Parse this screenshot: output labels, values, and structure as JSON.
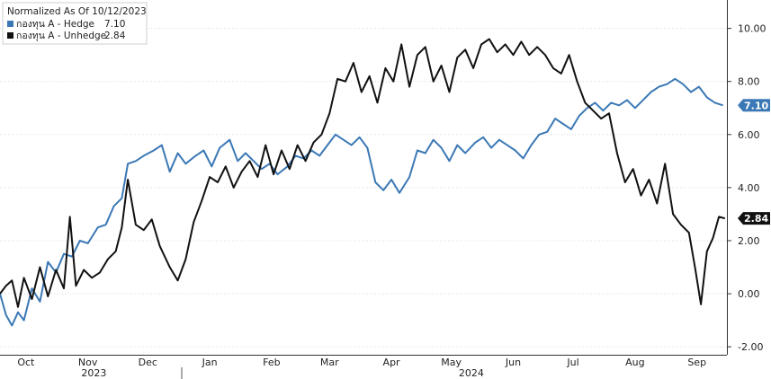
{
  "chart_data": {
    "type": "line",
    "title": "",
    "xlabel": "",
    "ylabel": "",
    "ylim": [
      -2.3,
      10.8
    ],
    "y_ticks": [
      "10.00",
      "8.00",
      "6.00",
      "4.00",
      "2.00",
      "0.00",
      "-2.00"
    ],
    "y_tick_values": [
      10,
      8,
      6,
      4,
      2,
      0,
      -2
    ],
    "x_start": "2023-10-02",
    "x_end": "2024-09-30",
    "x_ticks": [
      {
        "label": "Oct",
        "date": "2023-10-15"
      },
      {
        "label": "Nov",
        "date": "2023-11-15"
      },
      {
        "label": "Dec",
        "date": "2023-12-15"
      },
      {
        "label": "Jan",
        "date": "2024-01-15"
      },
      {
        "label": "Feb",
        "date": "2024-02-15"
      },
      {
        "label": "Mar",
        "date": "2024-03-15"
      },
      {
        "label": "Apr",
        "date": "2024-04-15"
      },
      {
        "label": "May",
        "date": "2024-05-15"
      },
      {
        "label": "Jun",
        "date": "2024-06-15"
      },
      {
        "label": "Jul",
        "date": "2024-07-15"
      },
      {
        "label": "Aug",
        "date": "2024-08-15"
      },
      {
        "label": "Sep",
        "date": "2024-09-15"
      }
    ],
    "year_labels": [
      {
        "label": "2023",
        "date": "2023-11-18"
      },
      {
        "label": "2024",
        "date": "2024-05-25"
      }
    ],
    "year_separator_date": "2024-01-01",
    "legend": {
      "header": "Normalized As Of 10/12/2023",
      "placement": "top-left"
    },
    "grid": {
      "horizontal": true,
      "vertical": false
    },
    "series": [
      {
        "name": "กองทุน A - Hedge",
        "legend_value": "7.10",
        "last_label": "7.10",
        "color": "#3b78b5",
        "points": [
          [
            "2023-10-02",
            0.0
          ],
          [
            "2023-10-05",
            -0.8
          ],
          [
            "2023-10-08",
            -1.2
          ],
          [
            "2023-10-11",
            -0.7
          ],
          [
            "2023-10-14",
            -1.0
          ],
          [
            "2023-10-18",
            0.2
          ],
          [
            "2023-10-22",
            -0.3
          ],
          [
            "2023-10-26",
            1.2
          ],
          [
            "2023-10-30",
            0.8
          ],
          [
            "2023-11-03",
            1.5
          ],
          [
            "2023-11-07",
            1.4
          ],
          [
            "2023-11-11",
            2.0
          ],
          [
            "2023-11-15",
            1.9
          ],
          [
            "2023-11-20",
            2.5
          ],
          [
            "2023-11-24",
            2.6
          ],
          [
            "2023-11-28",
            3.3
          ],
          [
            "2023-12-02",
            3.6
          ],
          [
            "2023-12-05",
            4.9
          ],
          [
            "2023-12-09",
            5.0
          ],
          [
            "2023-12-13",
            5.2
          ],
          [
            "2023-12-18",
            5.4
          ],
          [
            "2023-12-22",
            5.6
          ],
          [
            "2023-12-26",
            4.6
          ],
          [
            "2023-12-30",
            5.3
          ],
          [
            "2024-01-03",
            4.9
          ],
          [
            "2024-01-08",
            5.2
          ],
          [
            "2024-01-12",
            5.4
          ],
          [
            "2024-01-16",
            4.8
          ],
          [
            "2024-01-20",
            5.5
          ],
          [
            "2024-01-25",
            5.8
          ],
          [
            "2024-01-29",
            5.0
          ],
          [
            "2024-02-02",
            5.3
          ],
          [
            "2024-02-06",
            5.0
          ],
          [
            "2024-02-10",
            4.7
          ],
          [
            "2024-02-14",
            4.9
          ],
          [
            "2024-02-18",
            4.5
          ],
          [
            "2024-02-23",
            4.8
          ],
          [
            "2024-02-27",
            5.2
          ],
          [
            "2024-03-02",
            5.1
          ],
          [
            "2024-03-06",
            5.4
          ],
          [
            "2024-03-10",
            5.2
          ],
          [
            "2024-03-14",
            5.6
          ],
          [
            "2024-03-18",
            6.0
          ],
          [
            "2024-03-22",
            5.8
          ],
          [
            "2024-03-26",
            5.6
          ],
          [
            "2024-03-30",
            5.9
          ],
          [
            "2024-04-03",
            5.5
          ],
          [
            "2024-04-07",
            4.2
          ],
          [
            "2024-04-11",
            3.9
          ],
          [
            "2024-04-15",
            4.3
          ],
          [
            "2024-04-19",
            3.8
          ],
          [
            "2024-04-24",
            4.4
          ],
          [
            "2024-04-28",
            5.4
          ],
          [
            "2024-05-02",
            5.3
          ],
          [
            "2024-05-06",
            5.8
          ],
          [
            "2024-05-10",
            5.5
          ],
          [
            "2024-05-14",
            5.0
          ],
          [
            "2024-05-18",
            5.6
          ],
          [
            "2024-05-22",
            5.3
          ],
          [
            "2024-05-27",
            5.7
          ],
          [
            "2024-05-31",
            5.9
          ],
          [
            "2024-06-04",
            5.5
          ],
          [
            "2024-06-08",
            5.8
          ],
          [
            "2024-06-12",
            5.6
          ],
          [
            "2024-06-16",
            5.4
          ],
          [
            "2024-06-20",
            5.1
          ],
          [
            "2024-06-24",
            5.6
          ],
          [
            "2024-06-28",
            6.0
          ],
          [
            "2024-07-02",
            6.1
          ],
          [
            "2024-07-06",
            6.6
          ],
          [
            "2024-07-10",
            6.4
          ],
          [
            "2024-07-14",
            6.2
          ],
          [
            "2024-07-18",
            6.7
          ],
          [
            "2024-07-22",
            7.0
          ],
          [
            "2024-07-26",
            7.2
          ],
          [
            "2024-07-30",
            6.9
          ],
          [
            "2024-08-03",
            7.2
          ],
          [
            "2024-08-07",
            7.1
          ],
          [
            "2024-08-11",
            7.3
          ],
          [
            "2024-08-15",
            7.0
          ],
          [
            "2024-08-19",
            7.3
          ],
          [
            "2024-08-23",
            7.6
          ],
          [
            "2024-08-27",
            7.8
          ],
          [
            "2024-08-31",
            7.9
          ],
          [
            "2024-09-04",
            8.1
          ],
          [
            "2024-09-08",
            7.9
          ],
          [
            "2024-09-12",
            7.6
          ],
          [
            "2024-09-16",
            7.8
          ],
          [
            "2024-09-20",
            7.4
          ],
          [
            "2024-09-24",
            7.2
          ],
          [
            "2024-09-28",
            7.1
          ]
        ]
      },
      {
        "name": "กองทุน A - Unhedge",
        "legend_value": "2.84",
        "last_label": "2.84",
        "color": "#111111",
        "points": [
          [
            "2023-10-02",
            0.0
          ],
          [
            "2023-10-05",
            0.3
          ],
          [
            "2023-10-08",
            0.5
          ],
          [
            "2023-10-11",
            -0.5
          ],
          [
            "2023-10-14",
            0.6
          ],
          [
            "2023-10-18",
            -0.2
          ],
          [
            "2023-10-22",
            1.0
          ],
          [
            "2023-10-26",
            -0.1
          ],
          [
            "2023-10-30",
            0.9
          ],
          [
            "2023-11-03",
            0.2
          ],
          [
            "2023-11-06",
            2.9
          ],
          [
            "2023-11-09",
            0.3
          ],
          [
            "2023-11-13",
            0.9
          ],
          [
            "2023-11-17",
            0.6
          ],
          [
            "2023-11-21",
            0.8
          ],
          [
            "2023-11-25",
            1.3
          ],
          [
            "2023-11-29",
            1.6
          ],
          [
            "2023-12-02",
            2.5
          ],
          [
            "2023-12-05",
            4.3
          ],
          [
            "2023-12-09",
            2.6
          ],
          [
            "2023-12-13",
            2.4
          ],
          [
            "2023-12-17",
            2.8
          ],
          [
            "2023-12-21",
            1.8
          ],
          [
            "2023-12-26",
            1.0
          ],
          [
            "2023-12-30",
            0.5
          ],
          [
            "2024-01-03",
            1.3
          ],
          [
            "2024-01-07",
            2.7
          ],
          [
            "2024-01-11",
            3.5
          ],
          [
            "2024-01-15",
            4.4
          ],
          [
            "2024-01-19",
            4.2
          ],
          [
            "2024-01-23",
            4.8
          ],
          [
            "2024-01-27",
            4.0
          ],
          [
            "2024-01-31",
            4.6
          ],
          [
            "2024-02-04",
            5.0
          ],
          [
            "2024-02-08",
            4.4
          ],
          [
            "2024-02-12",
            5.6
          ],
          [
            "2024-02-16",
            4.5
          ],
          [
            "2024-02-20",
            5.4
          ],
          [
            "2024-02-24",
            4.7
          ],
          [
            "2024-02-28",
            5.6
          ],
          [
            "2024-03-03",
            5.0
          ],
          [
            "2024-03-07",
            5.7
          ],
          [
            "2024-03-11",
            6.0
          ],
          [
            "2024-03-15",
            6.8
          ],
          [
            "2024-03-19",
            8.1
          ],
          [
            "2024-03-23",
            8.0
          ],
          [
            "2024-03-27",
            8.7
          ],
          [
            "2024-03-31",
            7.6
          ],
          [
            "2024-04-04",
            8.2
          ],
          [
            "2024-04-08",
            7.2
          ],
          [
            "2024-04-12",
            8.5
          ],
          [
            "2024-04-16",
            8.0
          ],
          [
            "2024-04-20",
            9.4
          ],
          [
            "2024-04-24",
            7.8
          ],
          [
            "2024-04-28",
            9.0
          ],
          [
            "2024-05-02",
            9.3
          ],
          [
            "2024-05-06",
            8.0
          ],
          [
            "2024-05-10",
            8.6
          ],
          [
            "2024-05-14",
            7.6
          ],
          [
            "2024-05-18",
            8.9
          ],
          [
            "2024-05-22",
            9.2
          ],
          [
            "2024-05-26",
            8.5
          ],
          [
            "2024-05-30",
            9.4
          ],
          [
            "2024-06-03",
            9.6
          ],
          [
            "2024-06-07",
            9.1
          ],
          [
            "2024-06-11",
            9.4
          ],
          [
            "2024-06-15",
            9.0
          ],
          [
            "2024-06-19",
            9.5
          ],
          [
            "2024-06-23",
            9.0
          ],
          [
            "2024-06-27",
            9.3
          ],
          [
            "2024-07-01",
            9.0
          ],
          [
            "2024-07-05",
            8.5
          ],
          [
            "2024-07-09",
            8.3
          ],
          [
            "2024-07-13",
            9.0
          ],
          [
            "2024-07-17",
            8.0
          ],
          [
            "2024-07-21",
            7.2
          ],
          [
            "2024-07-25",
            6.9
          ],
          [
            "2024-07-29",
            6.6
          ],
          [
            "2024-08-02",
            6.8
          ],
          [
            "2024-08-06",
            5.3
          ],
          [
            "2024-08-10",
            4.2
          ],
          [
            "2024-08-14",
            4.7
          ],
          [
            "2024-08-18",
            3.7
          ],
          [
            "2024-08-22",
            4.3
          ],
          [
            "2024-08-26",
            3.4
          ],
          [
            "2024-08-30",
            4.9
          ],
          [
            "2024-09-03",
            3.0
          ],
          [
            "2024-09-07",
            2.6
          ],
          [
            "2024-09-11",
            2.3
          ],
          [
            "2024-09-14",
            1.0
          ],
          [
            "2024-09-17",
            -0.4
          ],
          [
            "2024-09-20",
            1.6
          ],
          [
            "2024-09-23",
            2.1
          ],
          [
            "2024-09-26",
            2.9
          ],
          [
            "2024-09-29",
            2.84
          ]
        ]
      }
    ]
  }
}
